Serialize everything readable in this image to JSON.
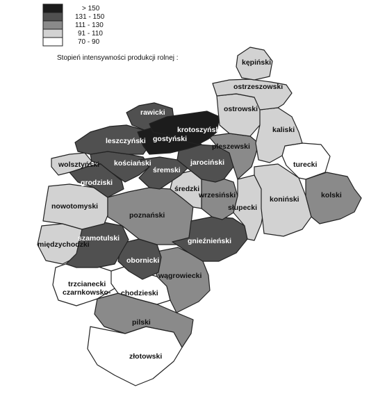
{
  "legend": {
    "title": "Stopień intensywności produkcji rolnej :",
    "classes": [
      {
        "label": "> 150",
        "color": "#1c1c1c"
      },
      {
        "label": "131 - 150",
        "color": "#505050"
      },
      {
        "label": "111 - 130",
        "color": "#8a8a8a"
      },
      {
        "label": "91 - 110",
        "color": "#d2d2d2"
      },
      {
        "label": "70 - 90",
        "color": "#ffffff"
      }
    ]
  },
  "regions": [
    {
      "id": "kepinski",
      "name": "kępiński",
      "class": 3
    },
    {
      "id": "ostrzeszowski",
      "name": "ostrzeszowski",
      "class": 3
    },
    {
      "id": "ostrowski",
      "name": "ostrowski",
      "class": 3
    },
    {
      "id": "kaliski",
      "name": "kaliski",
      "class": 3
    },
    {
      "id": "rawicki",
      "name": "rawicki",
      "class": 1
    },
    {
      "id": "krotoszynski",
      "name": "krotoszyński",
      "class": 0
    },
    {
      "id": "gostynski",
      "name": "gostyński",
      "class": 0
    },
    {
      "id": "leszczynski",
      "name": "leszczyński",
      "class": 1
    },
    {
      "id": "pleszewski",
      "name": "pleszewski",
      "class": 2
    },
    {
      "id": "turecki",
      "name": "turecki",
      "class": 4
    },
    {
      "id": "wolsztynski",
      "name": "wolsztyński",
      "class": 3
    },
    {
      "id": "koscianski",
      "name": "kościański",
      "class": 1
    },
    {
      "id": "jarocinski",
      "name": "jarociński",
      "class": 1
    },
    {
      "id": "sremski",
      "name": "śremski",
      "class": 1
    },
    {
      "id": "grodziski",
      "name": "grodziski",
      "class": 1
    },
    {
      "id": "sredzki",
      "name": "średzki",
      "class": 3
    },
    {
      "id": "wrzesinski",
      "name": "wrzesiński",
      "class": 2
    },
    {
      "id": "koninski",
      "name": "koniński",
      "class": 3
    },
    {
      "id": "kolski",
      "name": "kolski",
      "class": 2
    },
    {
      "id": "nowotomyski",
      "name": "nowotomyski",
      "class": 3
    },
    {
      "id": "poznanski",
      "name": "poznański",
      "class": 2
    },
    {
      "id": "slupecki",
      "name": "słupecki",
      "class": 3
    },
    {
      "id": "miedzychodzki",
      "name": "międzychodzki",
      "class": 3
    },
    {
      "id": "szamotulski",
      "name": "szamotulski",
      "class": 1
    },
    {
      "id": "gnieznienski",
      "name": "gnieźnieński",
      "class": 1
    },
    {
      "id": "obornicki",
      "name": "obornicki",
      "class": 1
    },
    {
      "id": "wagrowiecki",
      "name": "wągrowiecki",
      "class": 2
    },
    {
      "id": "trzcianecki",
      "name": "trzcianecki",
      "class": 4
    },
    {
      "id": "czarnkowsko",
      "name": "czarnkowsko-",
      "class": 4
    },
    {
      "id": "chodzieski",
      "name": "chodzieski",
      "class": 4
    },
    {
      "id": "pilski",
      "name": "pilski",
      "class": 2
    },
    {
      "id": "zlotowski",
      "name": "złotowski",
      "class": 4
    }
  ]
}
